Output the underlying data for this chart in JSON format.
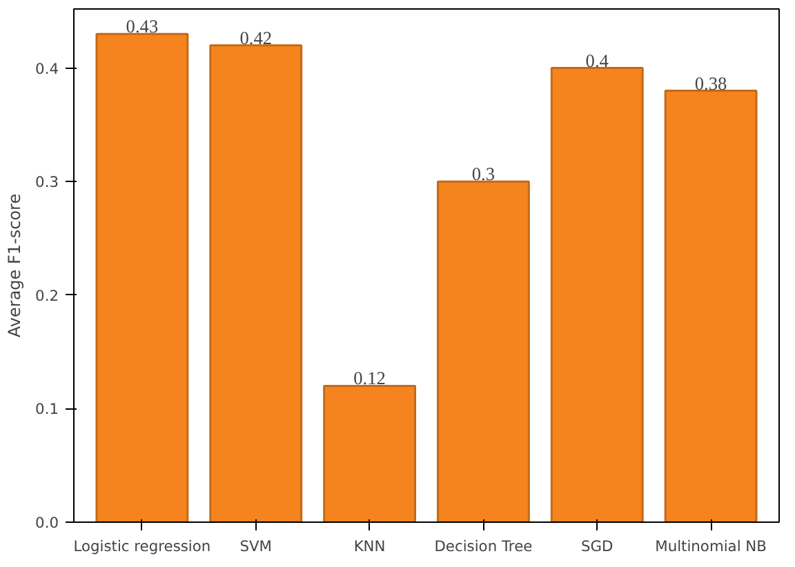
{
  "chart_data": {
    "type": "bar",
    "ylabel": "Average F1-score",
    "categories": [
      "Logistic regression",
      "SVM",
      "KNN",
      "Decision Tree",
      "SGD",
      "Multinomial NB"
    ],
    "values": [
      0.43,
      0.42,
      0.12,
      0.3,
      0.4,
      0.38
    ],
    "color": "#f5841f",
    "ylim": [
      0,
      0.452
    ],
    "yticks": [
      {
        "value": 0,
        "label": "0.0"
      },
      0.1,
      0.2,
      0.3,
      0.4
    ],
    "data_labels": true,
    "grid": false
  }
}
